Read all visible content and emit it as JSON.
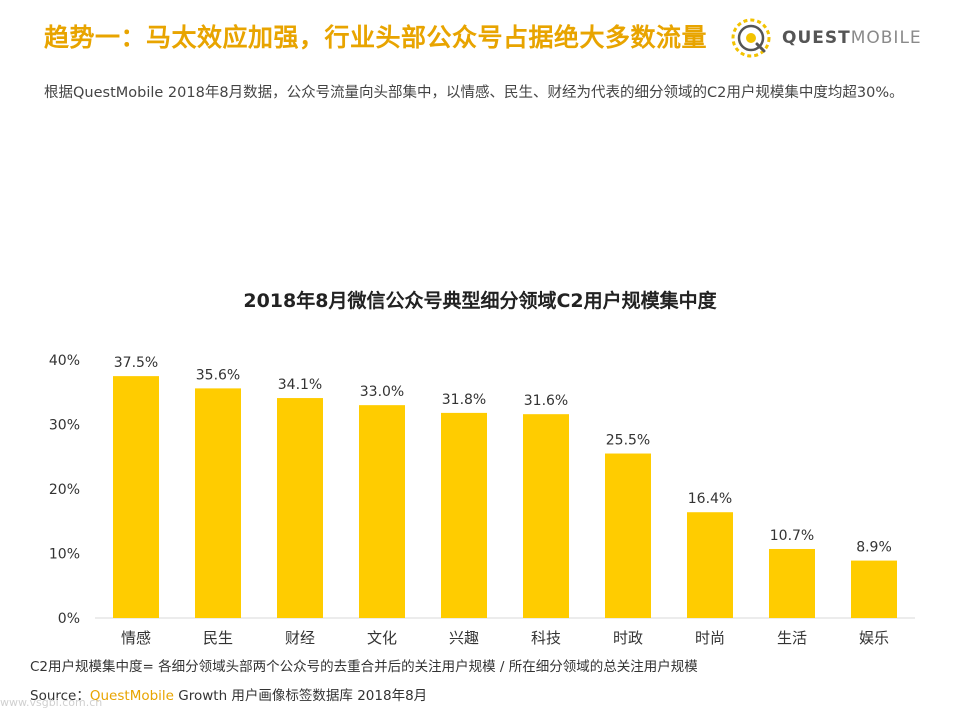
{
  "header": {
    "title": "趋势一：马太效应加强，行业头部公众号占据绝大多数流量",
    "logo_text_bold": "QUEST",
    "logo_text_light": "MOBILE"
  },
  "subtitle": "根据QuestMobile 2018年8月数据，公众号流量向头部集中，以情感、民生、财经为代表的细分领域的C2用户规模集中度均超30%。",
  "footer": {
    "note": "C2用户规模集中度= 各细分领域头部两个公众号的去重合并后的关注用户规模 / 所在细分领域的总关注用户规模",
    "source_prefix": "Source：",
    "source_brand": "QuestMobile",
    "source_rest": " Growth 用户画像标签数据库 2018年8月",
    "watermark": "www.vsgbi.com.cn"
  },
  "colors": {
    "accent": "#e8a400",
    "bar": "#ffcc00"
  },
  "chart_data": {
    "type": "bar",
    "title": "2018年8月微信公众号典型细分领域C2用户规模集中度",
    "categories": [
      "情感",
      "民生",
      "财经",
      "文化",
      "兴趣",
      "科技",
      "时政",
      "时尚",
      "生活",
      "娱乐"
    ],
    "values": [
      37.5,
      35.6,
      34.1,
      33.0,
      31.8,
      31.6,
      25.5,
      16.4,
      10.7,
      8.9
    ],
    "value_labels": [
      "37.5%",
      "35.6%",
      "34.1%",
      "33.0%",
      "31.8%",
      "31.6%",
      "25.5%",
      "16.4%",
      "10.7%",
      "8.9%"
    ],
    "ylim": [
      0,
      40
    ],
    "yticks": [
      "0%",
      "10%",
      "20%",
      "30%",
      "40%"
    ],
    "ytick_values": [
      0,
      10,
      20,
      30,
      40
    ],
    "grid": false,
    "xlabel": "",
    "ylabel": ""
  }
}
